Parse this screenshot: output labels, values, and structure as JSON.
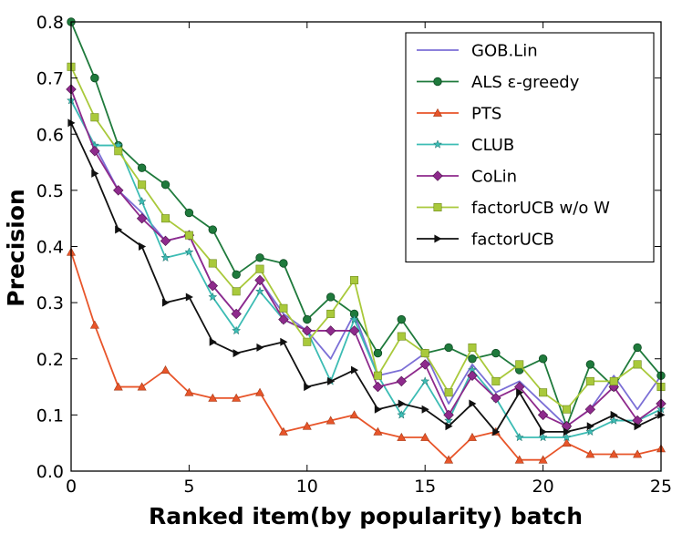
{
  "chart_data": {
    "type": "line",
    "xlabel": "Ranked item(by popularity) batch",
    "ylabel": "Precision",
    "xlim": [
      0,
      25
    ],
    "ylim": [
      0.0,
      0.8
    ],
    "xticks": [
      "0",
      "5",
      "10",
      "15",
      "20",
      "25"
    ],
    "yticks": [
      "0.0",
      "0.1",
      "0.2",
      "0.3",
      "0.4",
      "0.5",
      "0.6",
      "0.7",
      "0.8"
    ],
    "grid": false,
    "legend_position": "top-right",
    "x": [
      0,
      1,
      2,
      3,
      4,
      5,
      6,
      7,
      8,
      9,
      10,
      11,
      12,
      13,
      14,
      15,
      16,
      17,
      18,
      19,
      20,
      21,
      22,
      23,
      24,
      25
    ],
    "series": [
      {
        "name": "GOB.Lin",
        "color": "#7b6fd6",
        "marker": "none",
        "values": [
          0.66,
          0.58,
          0.5,
          0.46,
          0.41,
          0.42,
          0.33,
          0.28,
          0.34,
          0.28,
          0.25,
          0.2,
          0.28,
          0.17,
          0.18,
          0.21,
          0.12,
          0.19,
          0.14,
          0.16,
          0.12,
          0.08,
          0.11,
          0.17,
          0.11,
          0.17
        ]
      },
      {
        "name": "ALS ε-greedy",
        "color": "#1f7a3c",
        "marker": "circle",
        "values": [
          0.8,
          0.7,
          0.58,
          0.54,
          0.51,
          0.46,
          0.43,
          0.35,
          0.38,
          0.37,
          0.27,
          0.31,
          0.28,
          0.21,
          0.27,
          0.21,
          0.22,
          0.2,
          0.21,
          0.18,
          0.2,
          0.08,
          0.19,
          0.15,
          0.22,
          0.17
        ]
      },
      {
        "name": "PTS",
        "color": "#e8552a",
        "marker": "triangle",
        "values": [
          0.39,
          0.26,
          0.15,
          0.15,
          0.18,
          0.14,
          0.13,
          0.13,
          0.14,
          0.07,
          0.08,
          0.09,
          0.1,
          0.07,
          0.06,
          0.06,
          0.02,
          0.06,
          0.07,
          0.02,
          0.02,
          0.05,
          0.03,
          0.03,
          0.03,
          0.04
        ]
      },
      {
        "name": "CLUB",
        "color": "#3cbcb4",
        "marker": "star",
        "values": [
          0.66,
          0.58,
          0.58,
          0.48,
          0.38,
          0.39,
          0.31,
          0.25,
          0.32,
          0.27,
          0.25,
          0.16,
          0.27,
          0.17,
          0.1,
          0.16,
          0.09,
          0.18,
          0.13,
          0.06,
          0.06,
          0.06,
          0.07,
          0.09,
          0.09,
          0.11
        ]
      },
      {
        "name": "CoLin",
        "color": "#8e2a8c",
        "marker": "diamond",
        "values": [
          0.68,
          0.57,
          0.5,
          0.45,
          0.41,
          0.42,
          0.33,
          0.28,
          0.34,
          0.27,
          0.25,
          0.25,
          0.25,
          0.15,
          0.16,
          0.19,
          0.1,
          0.17,
          0.13,
          0.15,
          0.1,
          0.08,
          0.11,
          0.15,
          0.09,
          0.12
        ]
      },
      {
        "name": "factorUCB w/o W",
        "color": "#a9c93b",
        "marker": "square",
        "values": [
          0.72,
          0.63,
          0.57,
          0.51,
          0.45,
          0.42,
          0.37,
          0.32,
          0.36,
          0.29,
          0.23,
          0.28,
          0.34,
          0.17,
          0.24,
          0.21,
          0.14,
          0.22,
          0.16,
          0.19,
          0.14,
          0.11,
          0.16,
          0.16,
          0.19,
          0.15
        ]
      },
      {
        "name": "factorUCB",
        "color": "#111111",
        "marker": "triangle-right",
        "values": [
          0.62,
          0.53,
          0.43,
          0.4,
          0.3,
          0.31,
          0.23,
          0.21,
          0.22,
          0.23,
          0.15,
          0.16,
          0.18,
          0.11,
          0.12,
          0.11,
          0.08,
          0.12,
          0.07,
          0.14,
          0.07,
          0.07,
          0.08,
          0.1,
          0.08,
          0.1
        ]
      }
    ]
  }
}
